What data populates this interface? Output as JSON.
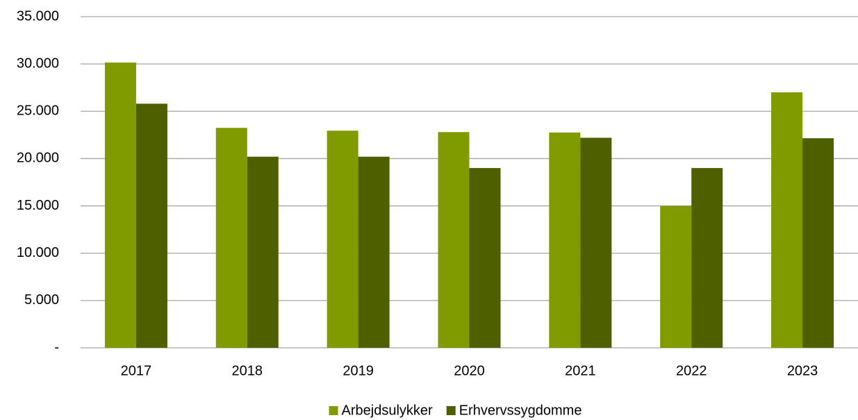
{
  "chart_data": {
    "type": "bar",
    "categories": [
      "2017",
      "2018",
      "2019",
      "2020",
      "2021",
      "2022",
      "2023"
    ],
    "series": [
      {
        "name": "Arbejdsulykker",
        "color": "#809b00",
        "values": [
          30150,
          23250,
          22950,
          22800,
          22750,
          15000,
          27000
        ]
      },
      {
        "name": "Erhvervssygdomme",
        "color": "#4e5f00",
        "values": [
          25800,
          20200,
          20200,
          19000,
          22200,
          19000,
          22150
        ]
      }
    ],
    "ylim": [
      0,
      35000
    ],
    "yticks": [
      {
        "value": 0,
        "label": "-"
      },
      {
        "value": 5000,
        "label": "5.000"
      },
      {
        "value": 10000,
        "label": "10.000"
      },
      {
        "value": 15000,
        "label": "15.000"
      },
      {
        "value": 20000,
        "label": "20.000"
      },
      {
        "value": 25000,
        "label": "25.000"
      },
      {
        "value": 30000,
        "label": "30.000"
      },
      {
        "value": 35000,
        "label": "35.000"
      }
    ],
    "grid": true,
    "legend": "bottom"
  }
}
